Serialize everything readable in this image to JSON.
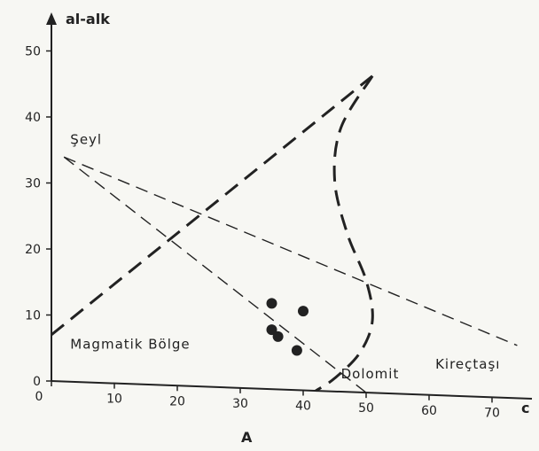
{
  "chart_data": {
    "type": "scatter",
    "title": "",
    "caption": "A",
    "ylabel": "al-alk",
    "xlabel": "c",
    "xlim": [
      0,
      75
    ],
    "ylim": [
      0,
      55
    ],
    "xticks": [
      0,
      10,
      20,
      30,
      40,
      50,
      60,
      70
    ],
    "yticks": [
      0,
      10,
      20,
      30,
      40,
      50
    ],
    "grid": false,
    "colors": {
      "ink": "#222222",
      "background": "#f7f7f3"
    },
    "points": [
      {
        "x": 35,
        "y": 13
      },
      {
        "x": 40,
        "y": 12
      },
      {
        "x": 35,
        "y": 9
      },
      {
        "x": 36,
        "y": 8
      },
      {
        "x": 39,
        "y": 6
      }
    ],
    "lines": [
      {
        "style": "light-dashed",
        "x": [
          2,
          74
        ],
        "y": [
          34,
          8
        ]
      },
      {
        "style": "light-dashed",
        "x": [
          2,
          50
        ],
        "y": [
          34,
          0
        ]
      },
      {
        "style": "heavy-dashed",
        "x": [
          0,
          51
        ],
        "y": [
          7,
          48
        ]
      }
    ],
    "curve": {
      "style": "heavy-dashed",
      "x": [
        51,
        46,
        45,
        47,
        50,
        51,
        49,
        45,
        42
      ],
      "y": [
        48,
        40,
        32,
        24,
        17,
        11,
        6,
        2,
        0
      ]
    },
    "region_labels": [
      {
        "text": "Şeyl",
        "x": 3,
        "y": 36
      },
      {
        "text": "Magmatik  Bölge",
        "x": 3,
        "y": 5
      },
      {
        "text": "Dolomit",
        "x": 46,
        "y": 2
      },
      {
        "text": "Kireçtaşı",
        "x": 61,
        "y": 4
      }
    ]
  }
}
